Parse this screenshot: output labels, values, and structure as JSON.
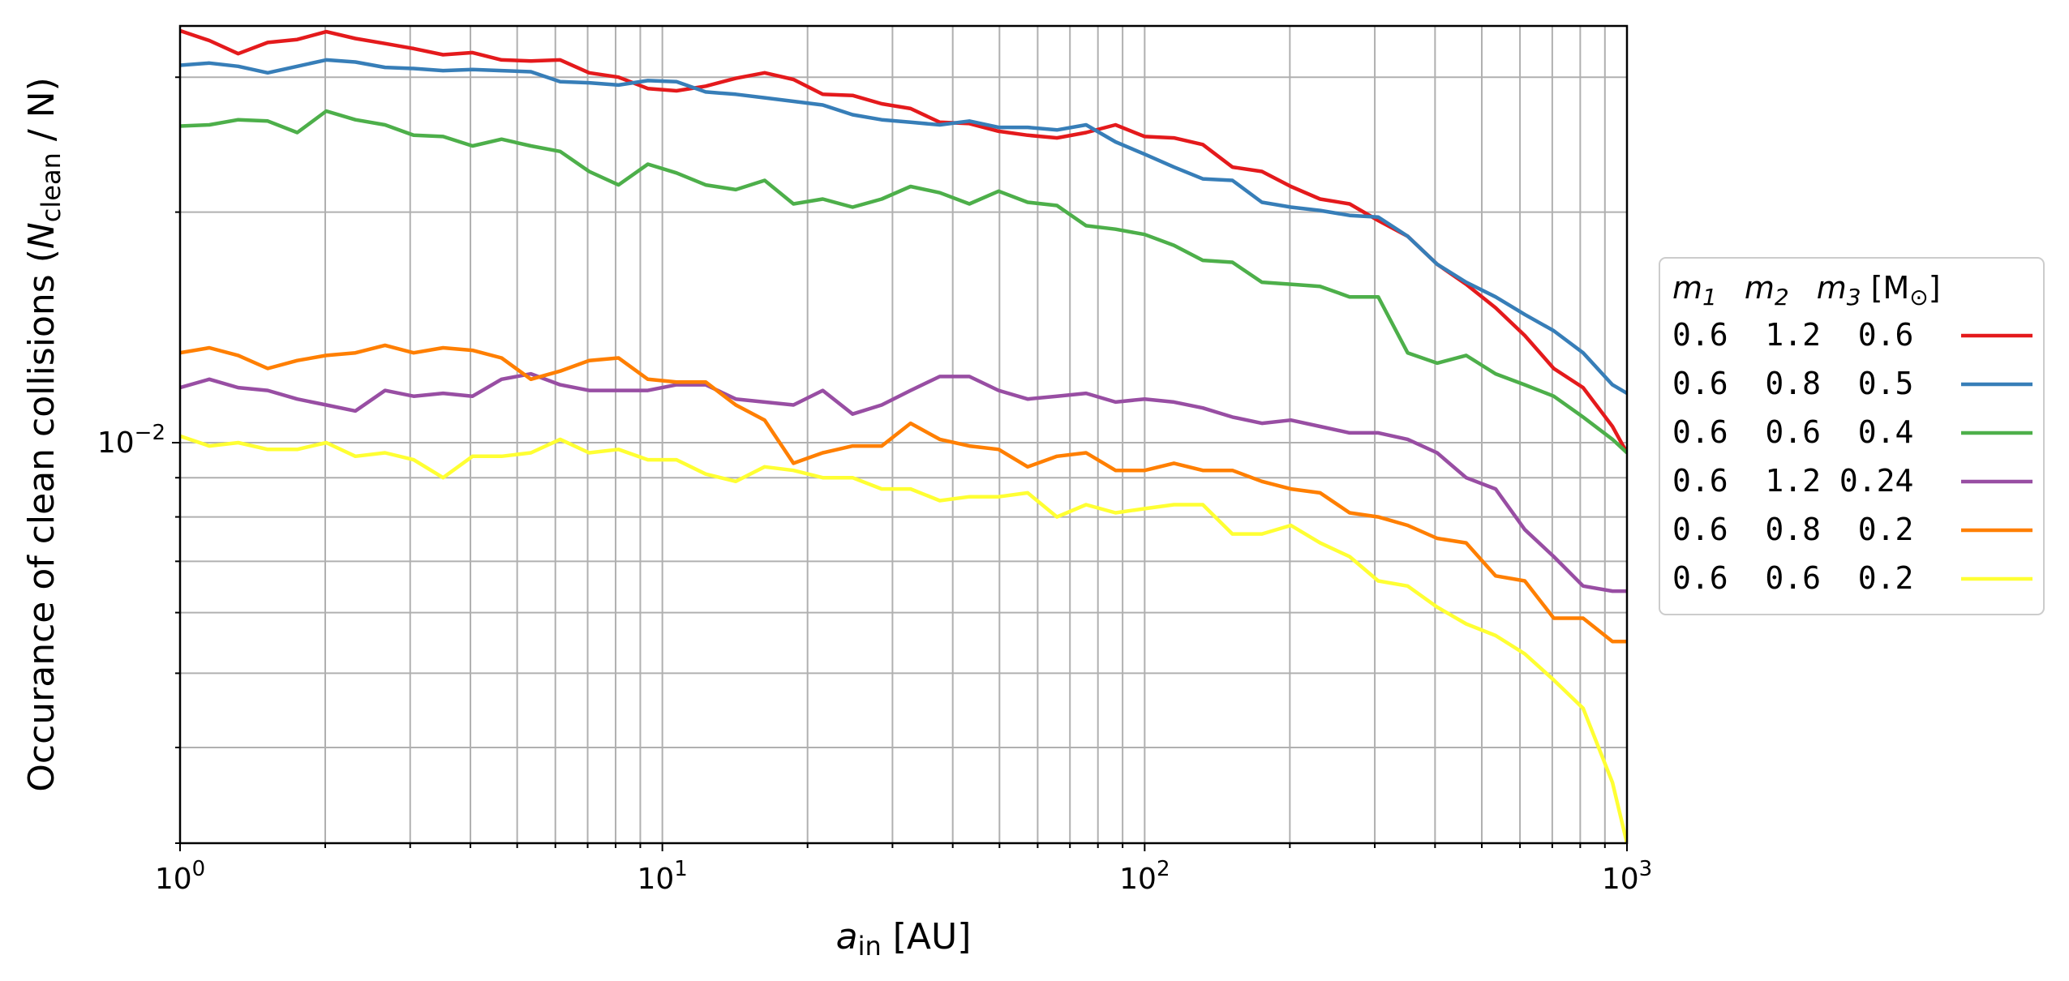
{
  "chart_data": {
    "type": "line",
    "xscale": "log",
    "yscale": "log",
    "xlim": [
      1,
      1000
    ],
    "ylim": [
      0.003,
      0.035
    ],
    "grid": "major and minor",
    "legend_position": "right outside",
    "x_tick_labels": [
      {
        "base": "10",
        "exp": "0"
      },
      {
        "base": "10",
        "exp": "1"
      },
      {
        "base": "10",
        "exp": "2"
      },
      {
        "base": "10",
        "exp": "3"
      }
    ],
    "y_tick_labels": [
      {
        "value": 0.01,
        "base": "10",
        "exp": "−2"
      }
    ],
    "xlabel": {
      "var": "a",
      "sub": "in",
      "unit": " [AU]"
    },
    "ylabel": {
      "pre": "Occurance of clean collisions (",
      "var": "N",
      "sub": "clean",
      "post": " / N)"
    },
    "legend_title": {
      "c1": "m",
      "c1s": "1",
      "c2": "m",
      "c2s": "2",
      "c3": "m",
      "c3s": "3",
      "unit": " [M",
      "unitsub": "⊙",
      "close": "]"
    },
    "x": [
      1.0,
      1.15,
      1.32,
      1.52,
      1.75,
      2.01,
      2.31,
      2.66,
      3.05,
      3.51,
      4.04,
      4.64,
      5.34,
      6.14,
      7.05,
      8.11,
      9.33,
      10.7,
      12.3,
      14.2,
      16.3,
      18.7,
      21.5,
      24.8,
      28.5,
      32.7,
      37.6,
      43.3,
      49.8,
      57.2,
      65.8,
      75.6,
      87.0,
      100.0,
      115,
      132,
      152,
      175,
      201,
      231,
      266,
      305,
      351,
      404,
      464,
      534,
      614,
      705,
      811,
      933,
      1000
    ],
    "series": [
      {
        "name": "0.6  1.2  0.6",
        "color": "#e41a1c",
        "values": [
          0.0345,
          0.0335,
          0.0322,
          0.0333,
          0.0336,
          0.0344,
          0.0337,
          0.0332,
          0.0327,
          0.0321,
          0.0323,
          0.0316,
          0.0315,
          0.0316,
          0.0304,
          0.03,
          0.029,
          0.0288,
          0.0292,
          0.0299,
          0.0304,
          0.0298,
          0.0285,
          0.0284,
          0.0277,
          0.0273,
          0.0262,
          0.0261,
          0.0255,
          0.0252,
          0.025,
          0.0254,
          0.026,
          0.0251,
          0.025,
          0.0245,
          0.0229,
          0.0226,
          0.0216,
          0.0208,
          0.0205,
          0.0195,
          0.0186,
          0.0171,
          0.0161,
          0.015,
          0.0138,
          0.0125,
          0.0118,
          0.0105,
          0.0097
        ]
      },
      {
        "name": "0.6  0.8  0.5",
        "color": "#377eb8",
        "values": [
          0.0311,
          0.0313,
          0.031,
          0.0304,
          0.031,
          0.0316,
          0.0314,
          0.0309,
          0.0308,
          0.0306,
          0.0307,
          0.0306,
          0.0305,
          0.0296,
          0.0295,
          0.0293,
          0.0297,
          0.0296,
          0.0287,
          0.0285,
          0.0282,
          0.0279,
          0.0276,
          0.0268,
          0.0264,
          0.0262,
          0.026,
          0.0263,
          0.0258,
          0.0258,
          0.0256,
          0.026,
          0.0247,
          0.0238,
          0.0229,
          0.0221,
          0.022,
          0.0206,
          0.0203,
          0.0201,
          0.0198,
          0.0197,
          0.0186,
          0.0171,
          0.0162,
          0.0155,
          0.0147,
          0.014,
          0.0131,
          0.0119,
          0.0116
        ]
      },
      {
        "name": "0.6  0.6  0.4",
        "color": "#4daf4a",
        "values": [
          0.0259,
          0.026,
          0.0264,
          0.0263,
          0.0254,
          0.0271,
          0.0264,
          0.026,
          0.0252,
          0.0251,
          0.0244,
          0.0249,
          0.0244,
          0.024,
          0.0226,
          0.0217,
          0.0231,
          0.0225,
          0.0217,
          0.0214,
          0.022,
          0.0205,
          0.0208,
          0.0203,
          0.0208,
          0.0216,
          0.0212,
          0.0205,
          0.0213,
          0.0206,
          0.0204,
          0.0192,
          0.019,
          0.0187,
          0.0181,
          0.0173,
          0.0172,
          0.0162,
          0.0161,
          0.016,
          0.0155,
          0.0155,
          0.0131,
          0.0127,
          0.013,
          0.0123,
          0.0119,
          0.0115,
          0.0108,
          0.0101,
          0.0097
        ]
      },
      {
        "name": "0.6  1.2 0.24",
        "color": "#984ea3",
        "values": [
          0.0118,
          0.0121,
          0.0118,
          0.0117,
          0.0114,
          0.0112,
          0.011,
          0.0117,
          0.0115,
          0.0116,
          0.0115,
          0.0121,
          0.0123,
          0.0119,
          0.0117,
          0.0117,
          0.0117,
          0.0119,
          0.0119,
          0.0114,
          0.0113,
          0.0112,
          0.0117,
          0.0109,
          0.0112,
          0.0117,
          0.0122,
          0.0122,
          0.0117,
          0.0114,
          0.0115,
          0.0116,
          0.0113,
          0.0114,
          0.0113,
          0.0111,
          0.0108,
          0.0106,
          0.0107,
          0.0105,
          0.0103,
          0.0103,
          0.0101,
          0.0097,
          0.009,
          0.0087,
          0.0077,
          0.0071,
          0.0065,
          0.0064,
          0.0064
        ]
      },
      {
        "name": "0.6  0.8  0.2",
        "color": "#ff7f00",
        "values": [
          0.0131,
          0.0133,
          0.013,
          0.0125,
          0.0128,
          0.013,
          0.0131,
          0.0134,
          0.0131,
          0.0133,
          0.0132,
          0.0129,
          0.0121,
          0.0124,
          0.0128,
          0.0129,
          0.0121,
          0.012,
          0.012,
          0.0112,
          0.0107,
          0.0094,
          0.0097,
          0.0099,
          0.0099,
          0.0106,
          0.0101,
          0.0099,
          0.0098,
          0.0093,
          0.0096,
          0.0097,
          0.0092,
          0.0092,
          0.0094,
          0.0092,
          0.0092,
          0.0089,
          0.0087,
          0.0086,
          0.0081,
          0.008,
          0.0078,
          0.0075,
          0.0074,
          0.0067,
          0.0066,
          0.0059,
          0.0059,
          0.0055,
          0.0055
        ]
      },
      {
        "name": "0.6  0.6  0.2",
        "color": "#ffff33",
        "values": [
          0.0102,
          0.0099,
          0.01,
          0.0098,
          0.0098,
          0.01,
          0.0096,
          0.0097,
          0.0095,
          0.009,
          0.0096,
          0.0096,
          0.0097,
          0.0101,
          0.0097,
          0.0098,
          0.0095,
          0.0095,
          0.0091,
          0.0089,
          0.0093,
          0.0092,
          0.009,
          0.009,
          0.0087,
          0.0087,
          0.0084,
          0.0085,
          0.0085,
          0.0086,
          0.008,
          0.0083,
          0.0081,
          0.0082,
          0.0083,
          0.0083,
          0.0076,
          0.0076,
          0.0078,
          0.0074,
          0.0071,
          0.0066,
          0.0065,
          0.0061,
          0.0058,
          0.0056,
          0.0053,
          0.0049,
          0.0045,
          0.0036,
          0.003
        ]
      }
    ]
  }
}
